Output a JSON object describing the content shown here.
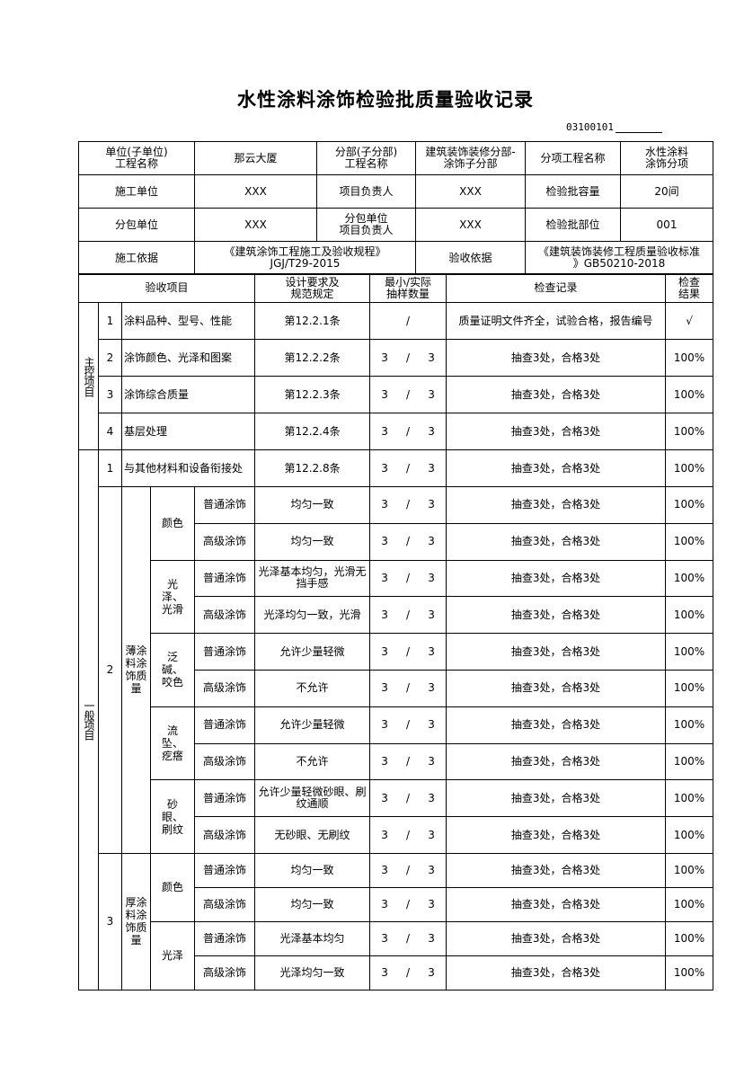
{
  "title": "水性涂料涂饰检验批质量验收记录",
  "code": "03100101",
  "info_rows": [
    [
      {
        "label": "单位(子单位)\n工程名称",
        "value": "那云大厦"
      },
      {
        "label": "分部(子分部)\n工程名称",
        "value": "建筑装饰装修分部-\n涂饰子分部"
      },
      {
        "label": "分项工程名称",
        "value": "水性涂料\n涂饰分项"
      }
    ],
    [
      {
        "label": "施工单位",
        "value": "XXX"
      },
      {
        "label": "项目负责人",
        "value": "XXX"
      },
      {
        "label": "检验批容量",
        "value": "20间"
      }
    ],
    [
      {
        "label": "分包单位",
        "value": "XXX"
      },
      {
        "label": "分包单位\n项目负责人",
        "value": "XXX"
      },
      {
        "label": "检验批部位",
        "value": "001"
      }
    ]
  ],
  "basis": {
    "construction_label": "施工依据",
    "construction_value": "《建筑涂饰工程施工及验收规程》\nJGJ/T29-2015",
    "acceptance_label": "验收依据",
    "acceptance_value": "《建筑装饰装修工程质量验收标准\n》GB50210-2018"
  },
  "headers": {
    "item": "验收项目",
    "spec": "设计要求及\n规范规定",
    "sample": "最小/实际\n抽样数量",
    "record": "检查记录",
    "result": "检查\n结果"
  },
  "main_control": {
    "label": "主控项目",
    "items": [
      {
        "no": "1",
        "item": "涂料品种、型号、性能",
        "spec": "第12.2.1条",
        "sample_min": "",
        "sample_actual": "",
        "sample_text": "/",
        "record": "质量证明文件齐全，试验合格，报告编号",
        "result": "√"
      },
      {
        "no": "2",
        "item": "涂饰颜色、光泽和图案",
        "spec": "第12.2.2条",
        "sample_min": "3",
        "sample_actual": "3",
        "record": "抽查3处，合格3处",
        "result": "100%"
      },
      {
        "no": "3",
        "item": "涂饰综合质量",
        "spec": "第12.2.3条",
        "sample_min": "3",
        "sample_actual": "3",
        "record": "抽查3处，合格3处",
        "result": "100%"
      },
      {
        "no": "4",
        "item": "基层处理",
        "spec": "第12.2.4条",
        "sample_min": "3",
        "sample_actual": "3",
        "record": "抽查3处，合格3处",
        "result": "100%"
      }
    ]
  },
  "general": {
    "label": "一般项目",
    "item1": {
      "no": "1",
      "item": "与其他材料和设备衔接处",
      "spec": "第12.2.8条",
      "sample_min": "3",
      "sample_actual": "3",
      "record": "抽查3处，合格3处",
      "result": "100%"
    },
    "groups": [
      {
        "no": "2",
        "name": "薄涂料涂饰质量",
        "subgroups": [
          {
            "name": "颜色",
            "rows": [
              {
                "grade": "普通涂饰",
                "spec": "均匀一致",
                "sample_min": "3",
                "sample_actual": "3",
                "record": "抽查3处，合格3处",
                "result": "100%"
              },
              {
                "grade": "高级涂饰",
                "spec": "均匀一致",
                "sample_min": "3",
                "sample_actual": "3",
                "record": "抽查3处，合格3处",
                "result": "100%"
              }
            ]
          },
          {
            "name": "光泽、光滑",
            "rows": [
              {
                "grade": "普通涂饰",
                "spec": "光泽基本均匀，光滑无挡手感",
                "sample_min": "3",
                "sample_actual": "3",
                "record": "抽查3处，合格3处",
                "result": "100%"
              },
              {
                "grade": "高级涂饰",
                "spec": "光泽均匀一致，光滑",
                "sample_min": "3",
                "sample_actual": "3",
                "record": "抽查3处，合格3处",
                "result": "100%"
              }
            ]
          },
          {
            "name": "泛碱、咬色",
            "rows": [
              {
                "grade": "普通涂饰",
                "spec": "允许少量轻微",
                "sample_min": "3",
                "sample_actual": "3",
                "record": "抽查3处，合格3处",
                "result": "100%"
              },
              {
                "grade": "高级涂饰",
                "spec": "不允许",
                "sample_min": "3",
                "sample_actual": "3",
                "record": "抽查3处，合格3处",
                "result": "100%"
              }
            ]
          },
          {
            "name": "流坠、疙瘩",
            "rows": [
              {
                "grade": "普通涂饰",
                "spec": "允许少量轻微",
                "sample_min": "3",
                "sample_actual": "3",
                "record": "抽查3处，合格3处",
                "result": "100%"
              },
              {
                "grade": "高级涂饰",
                "spec": "不允许",
                "sample_min": "3",
                "sample_actual": "3",
                "record": "抽查3处，合格3处",
                "result": "100%"
              }
            ]
          },
          {
            "name": "砂眼、刷纹",
            "rows": [
              {
                "grade": "普通涂饰",
                "spec": "允许少量轻微砂眼、刷纹通顺",
                "sample_min": "3",
                "sample_actual": "3",
                "record": "抽查3处，合格3处",
                "result": "100%"
              },
              {
                "grade": "高级涂饰",
                "spec": "无砂眼、无刷纹",
                "sample_min": "3",
                "sample_actual": "3",
                "record": "抽查3处，合格3处",
                "result": "100%"
              }
            ]
          }
        ]
      },
      {
        "no": "3",
        "name": "厚涂料涂饰质量",
        "subgroups": [
          {
            "name": "颜色",
            "rows": [
              {
                "grade": "普通涂饰",
                "spec": "均匀一致",
                "sample_min": "3",
                "sample_actual": "3",
                "record": "抽查3处，合格3处",
                "result": "100%"
              },
              {
                "grade": "高级涂饰",
                "spec": "均匀一致",
                "sample_min": "3",
                "sample_actual": "3",
                "record": "抽查3处，合格3处",
                "result": "100%"
              }
            ]
          },
          {
            "name": "光泽",
            "rows": [
              {
                "grade": "普通涂饰",
                "spec": "光泽基本均匀",
                "sample_min": "3",
                "sample_actual": "3",
                "record": "抽查3处，合格3处",
                "result": "100%"
              },
              {
                "grade": "高级涂饰",
                "spec": "光泽均匀一致",
                "sample_min": "3",
                "sample_actual": "3",
                "record": "抽查3处，合格3处",
                "result": "100%"
              }
            ]
          }
        ]
      }
    ]
  }
}
